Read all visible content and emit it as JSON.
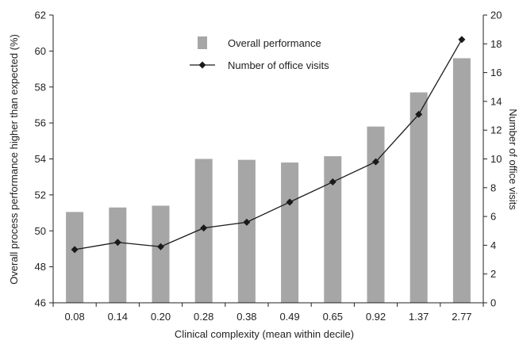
{
  "chart_data": {
    "type": "bar",
    "title": "",
    "xlabel": "Clinical complexity (mean within decile)",
    "ylabel": "Overall process performance higher than expected (%)",
    "y2label": "Number of office visits",
    "categories": [
      "0.08",
      "0.14",
      "0.20",
      "0.28",
      "0.38",
      "0.49",
      "0.65",
      "0.92",
      "1.37",
      "2.77"
    ],
    "ylim": [
      46,
      62
    ],
    "y2lim": [
      0,
      20
    ],
    "yticks": [
      "46",
      "48",
      "50",
      "52",
      "54",
      "56",
      "58",
      "60",
      "62"
    ],
    "y2ticks": [
      "0",
      "2",
      "4",
      "6",
      "8",
      "10",
      "12",
      "14",
      "16",
      "18",
      "20"
    ],
    "grid": false,
    "legend_position": "top-center",
    "series": [
      {
        "name": "Overall performance",
        "type": "bar",
        "axis": "left",
        "color": "#a6a6a6",
        "values": [
          51.05,
          51.3,
          51.4,
          54.0,
          53.95,
          53.8,
          54.15,
          55.8,
          57.7,
          59.6
        ]
      },
      {
        "name": "Number of office visits",
        "type": "line",
        "axis": "right",
        "color": "#1a1a1a",
        "marker": "diamond",
        "values": [
          3.7,
          4.2,
          3.9,
          5.2,
          5.6,
          7.0,
          8.4,
          9.8,
          13.1,
          18.3
        ]
      }
    ]
  }
}
